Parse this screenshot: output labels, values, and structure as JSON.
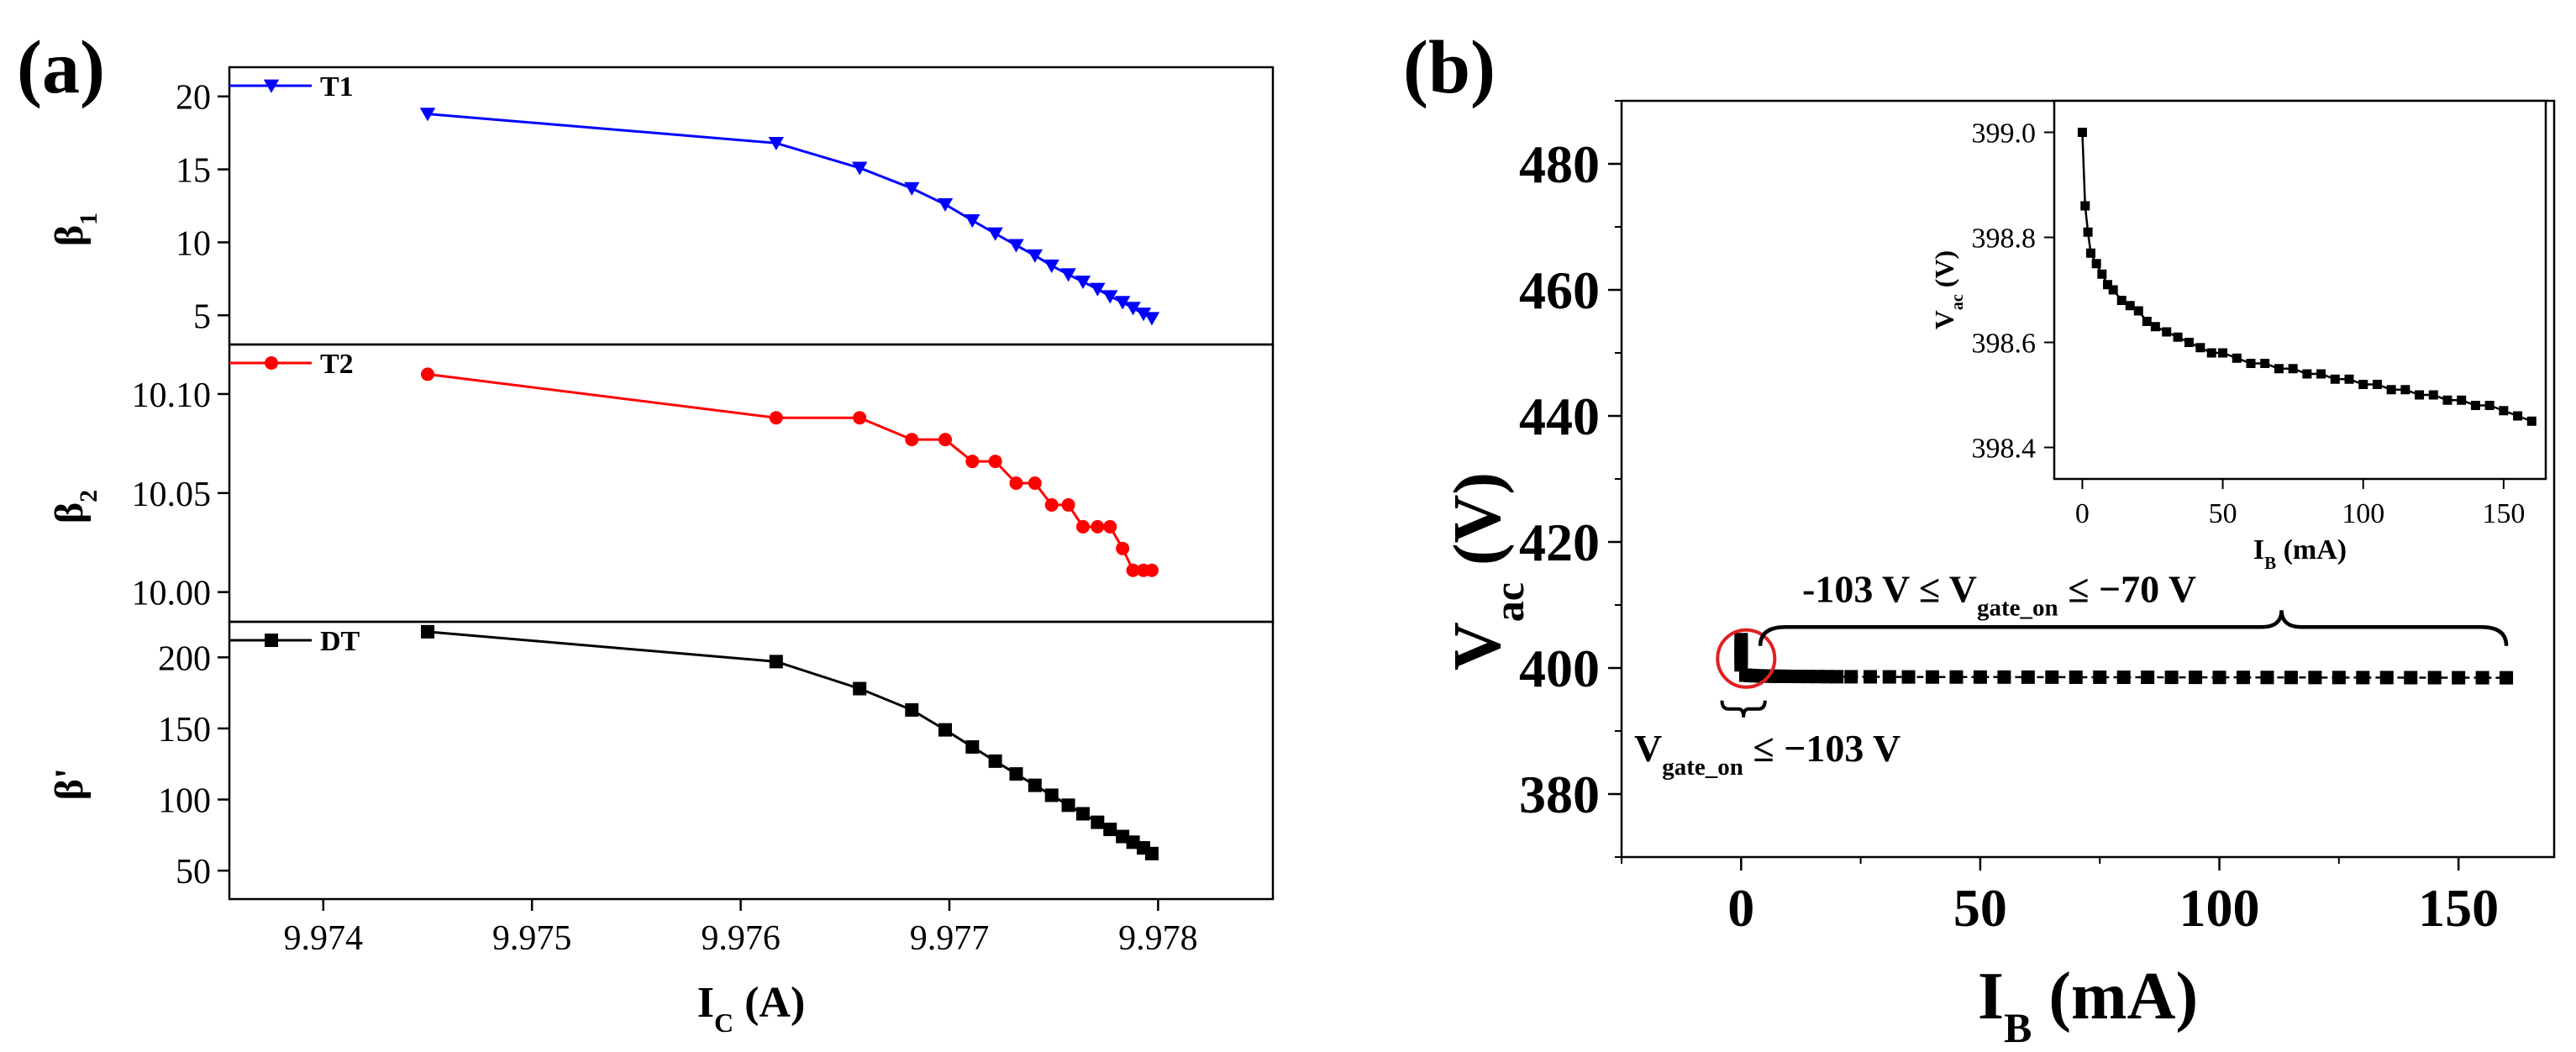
{
  "panel_labels": {
    "a": "(a)",
    "b": "(b)"
  },
  "colors": {
    "T1": "#0000ff",
    "T2": "#ff0000",
    "DT": "#000000",
    "circle": "#e02020",
    "axis": "#000000"
  },
  "chart_data": [
    {
      "id": "a",
      "type": "line",
      "xlabel_main": "I",
      "xlabel_sub": "C",
      "xlabel_unit": " (A)",
      "xlim": [
        9.97355,
        9.97855
      ],
      "xticks": [
        "9.974",
        "9.975",
        "9.976",
        "9.977",
        "9.978"
      ],
      "shared_x": true,
      "subplots": [
        {
          "id": "T1",
          "ylabel_main": "β",
          "ylabel_sub": "1",
          "ylim": [
            3,
            22
          ],
          "yticks": [
            "5",
            "10",
            "15",
            "20"
          ],
          "marker": "triangle-down",
          "legend": "T1",
          "legend_position": "top-left",
          "x": [
            9.9745,
            9.97617,
            9.97657,
            9.97682,
            9.97698,
            9.97711,
            9.97722,
            9.97732,
            9.97741,
            9.97749,
            9.97757,
            9.97764,
            9.97771,
            9.97777,
            9.97783,
            9.97788,
            9.97793,
            9.97797
          ],
          "y": [
            18.8,
            16.8,
            15.1,
            13.7,
            12.6,
            11.5,
            10.6,
            9.8,
            9.1,
            8.4,
            7.8,
            7.3,
            6.8,
            6.3,
            5.9,
            5.5,
            5.1,
            4.8
          ]
        },
        {
          "id": "T2",
          "ylabel_main": "β",
          "ylabel_sub": "2",
          "ylim": [
            9.985,
            10.125
          ],
          "yticks": [
            "10.00",
            "10.05",
            "10.10"
          ],
          "marker": "circle",
          "legend": "T2",
          "legend_position": "top-left",
          "x": [
            9.9745,
            9.97617,
            9.97657,
            9.97682,
            9.97698,
            9.97711,
            9.97722,
            9.97732,
            9.97741,
            9.97749,
            9.97757,
            9.97764,
            9.97771,
            9.97777,
            9.97783,
            9.97788,
            9.97793,
            9.97797
          ],
          "y": [
            10.11,
            10.088,
            10.088,
            10.077,
            10.077,
            10.066,
            10.066,
            10.055,
            10.055,
            10.044,
            10.044,
            10.033,
            10.033,
            10.033,
            10.022,
            10.011,
            10.011,
            10.011
          ]
        },
        {
          "id": "DT",
          "ylabel_main": "β'",
          "ylabel_sub": "",
          "ylim": [
            30,
            225
          ],
          "yticks": [
            "50",
            "100",
            "150",
            "200"
          ],
          "marker": "square",
          "legend": "DT",
          "legend_position": "top-left",
          "x": [
            9.9745,
            9.97617,
            9.97657,
            9.97682,
            9.97698,
            9.97711,
            9.97722,
            9.97732,
            9.97741,
            9.97749,
            9.97757,
            9.97764,
            9.97771,
            9.97777,
            9.97783,
            9.97788,
            9.97793,
            9.97797
          ],
          "y": [
            218,
            197,
            178,
            163,
            149,
            137,
            127,
            118,
            110,
            103,
            96,
            90,
            84,
            79,
            74,
            70,
            66,
            62
          ]
        }
      ]
    },
    {
      "id": "b",
      "type": "scatter",
      "xlabel_main": "I",
      "xlabel_sub": "B",
      "xlabel_unit": " (mA)",
      "ylabel_main": "V",
      "ylabel_sub": "ac",
      "ylabel_unit": " (V)",
      "xlim": [
        -25,
        170
      ],
      "ylim": [
        370,
        490
      ],
      "xticks": [
        "0",
        "50",
        "100",
        "150"
      ],
      "yticks": [
        "380",
        "400",
        "420",
        "440",
        "460",
        "480"
      ],
      "marker": "square",
      "x": [
        0,
        0,
        0,
        0,
        0,
        0,
        1,
        2,
        3,
        4,
        5,
        6,
        7,
        8,
        9,
        10,
        12,
        14,
        16,
        18,
        20,
        23,
        27,
        31,
        35,
        40,
        45,
        50,
        55,
        60,
        65,
        70,
        75,
        80,
        85,
        90,
        95,
        100,
        105,
        110,
        115,
        120,
        125,
        130,
        135,
        140,
        145,
        150,
        155,
        160
      ],
      "y": [
        404.5,
        403.7,
        402.9,
        402.1,
        401.3,
        400.5,
        398.86,
        398.81,
        398.77,
        398.75,
        398.73,
        398.71,
        398.7,
        398.69,
        398.68,
        398.67,
        398.66,
        398.65,
        398.64,
        398.63,
        398.62,
        398.61,
        398.6,
        398.59,
        398.58,
        398.57,
        398.57,
        398.56,
        398.56,
        398.55,
        398.55,
        398.54,
        398.54,
        398.53,
        398.53,
        398.52,
        398.52,
        398.51,
        398.51,
        398.5,
        398.5,
        398.49,
        398.49,
        398.48,
        398.48,
        398.47,
        398.47,
        398.46,
        398.46,
        398.45
      ],
      "annotations": {
        "upper_prefix": "-103 V ≤ V",
        "upper_sub": "gate_on",
        "upper_suffix": " ≤ −70 V",
        "lower_prefix": "V",
        "lower_sub": "gate_on",
        "lower_suffix": " ≤ −103 V"
      },
      "inset": {
        "type": "line",
        "xlabel_main": "I",
        "xlabel_sub": "B",
        "xlabel_unit": " (mA)",
        "ylabel_main": "V",
        "ylabel_sub": "ac",
        "ylabel_unit": " (V)",
        "xlim": [
          -10,
          165
        ],
        "ylim": [
          398.34,
          399.06
        ],
        "xticks": [
          "0",
          "50",
          "100",
          "150"
        ],
        "yticks": [
          "398.4",
          "398.6",
          "398.8",
          "399.0"
        ],
        "marker": "square",
        "x": [
          0,
          1,
          2,
          3,
          5,
          7,
          9,
          11,
          14,
          17,
          20,
          23,
          26,
          30,
          34,
          38,
          42,
          46,
          50,
          55,
          60,
          65,
          70,
          75,
          80,
          85,
          90,
          95,
          100,
          105,
          110,
          115,
          120,
          125,
          130,
          135,
          140,
          145,
          150,
          155,
          160
        ],
        "y": [
          399.0,
          398.86,
          398.81,
          398.77,
          398.75,
          398.73,
          398.71,
          398.7,
          398.68,
          398.67,
          398.66,
          398.64,
          398.63,
          398.62,
          398.61,
          398.6,
          398.59,
          398.58,
          398.58,
          398.57,
          398.56,
          398.56,
          398.55,
          398.55,
          398.54,
          398.54,
          398.53,
          398.53,
          398.52,
          398.52,
          398.51,
          398.51,
          398.5,
          398.5,
          398.49,
          398.49,
          398.48,
          398.48,
          398.47,
          398.46,
          398.45
        ]
      }
    }
  ]
}
